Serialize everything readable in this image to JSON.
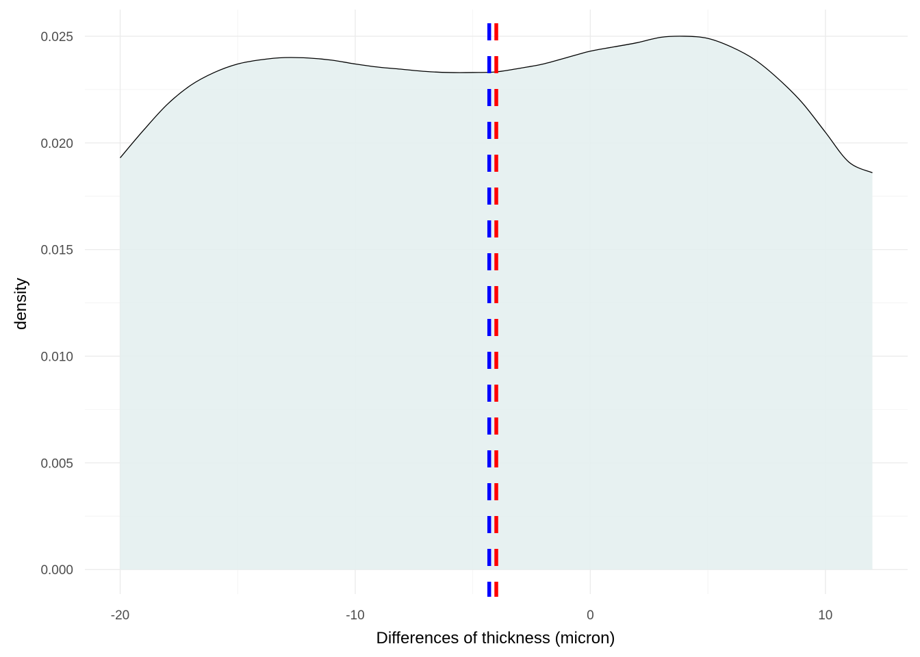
{
  "chart_data": {
    "type": "area",
    "title": "",
    "xlabel": "Differences of thickness (micron)",
    "ylabel": "density",
    "xlim": [
      -21.5,
      13.5
    ],
    "ylim": [
      -0.00115,
      0.02625
    ],
    "x_ticks": [
      -20,
      -10,
      0,
      10
    ],
    "x_tick_labels": [
      "-20",
      "-10",
      "0",
      "10"
    ],
    "x_minor_ticks": [
      -15,
      -5,
      5
    ],
    "y_ticks": [
      0,
      0.005,
      0.01,
      0.015,
      0.02,
      0.025
    ],
    "y_tick_labels": [
      "0.000",
      "0.005",
      "0.010",
      "0.015",
      "0.020",
      "0.025"
    ],
    "y_minor_ticks": [
      0.0025,
      0.0075,
      0.0125,
      0.0175,
      0.0225
    ],
    "grid": true,
    "legend": "none",
    "series": [
      {
        "kind": "density",
        "x": [
          -20,
          -19,
          -18,
          -17,
          -16,
          -15,
          -14,
          -13,
          -12,
          -11,
          -10,
          -9,
          -8,
          -7,
          -6,
          -5,
          -4,
          -3,
          -2,
          -1,
          0,
          1,
          2,
          3,
          4,
          5,
          6,
          7,
          8,
          9,
          10,
          11,
          12
        ],
        "y": [
          0.0193,
          0.0206,
          0.0218,
          0.0227,
          0.0233,
          0.0237,
          0.0239,
          0.024,
          0.02398,
          0.02388,
          0.0237,
          0.02355,
          0.02345,
          0.02335,
          0.0233,
          0.0233,
          0.02333,
          0.0235,
          0.0237,
          0.024,
          0.0243,
          0.0245,
          0.0247,
          0.02495,
          0.025,
          0.0249,
          0.0245,
          0.0239,
          0.023,
          0.0219,
          0.0205,
          0.0191,
          0.0186
        ],
        "fill": "#e4efef",
        "line_color": "#000000"
      }
    ],
    "vlines": [
      {
        "x": -4.3,
        "color": "#0000ff",
        "style": "dashed"
      },
      {
        "x": -4.0,
        "color": "#ff0000",
        "style": "dashed"
      }
    ],
    "colors": {
      "background": "#ffffff",
      "grid_major": "#ebebeb",
      "grid_minor": "#f4f4f4",
      "fill": "#e4efef",
      "mean_line": "#0000ff",
      "median_line": "#ff0000"
    }
  }
}
